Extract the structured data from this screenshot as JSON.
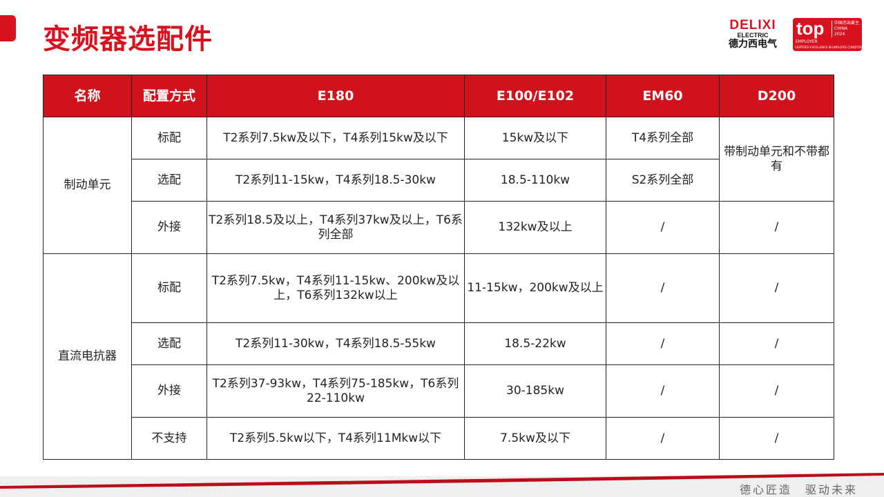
{
  "header": {
    "title": "变频器选配件"
  },
  "logo": {
    "brand": "DELIXI",
    "sub": "ELECTRIC",
    "cn": "德力西电气"
  },
  "badge": {
    "top": "top",
    "employer": "EMPLOYER",
    "region_cn": "中国杰出雇主",
    "region": "CHINA",
    "year": "2024",
    "footnote": "CERTIFIED EXCELLENCE IN EMPLOYEE CONDITIONS"
  },
  "colors": {
    "accent": "#d0121d"
  },
  "table": {
    "headers": [
      "名称",
      "配置方式",
      "E180",
      "E100/E102",
      "EM60",
      "D200"
    ],
    "rows": [
      {
        "cells": [
          {
            "t": "制动单元",
            "rs": 3
          },
          {
            "t": "标配"
          },
          {
            "t": "T2系列7.5kw及以下，T4系列15kw及以下"
          },
          {
            "t": "15kw及以下"
          },
          {
            "t": "T4系列全部"
          },
          {
            "t": "带制动单元和不带都有",
            "rs": 2
          }
        ]
      },
      {
        "cells": [
          {
            "t": "选配"
          },
          {
            "t": "T2系列11-15kw，T4系列18.5-30kw"
          },
          {
            "t": "18.5-110kw"
          },
          {
            "t": "S2系列全部"
          }
        ]
      },
      {
        "cells": [
          {
            "t": "外接"
          },
          {
            "t": "T2系列18.5及以上，T4系列37kw及以上，T6系列全部"
          },
          {
            "t": "132kw及以上"
          },
          {
            "t": "/"
          },
          {
            "t": "/"
          }
        ]
      },
      {
        "cells": [
          {
            "t": "直流电抗器",
            "rs": 4
          },
          {
            "t": "标配"
          },
          {
            "t": "T2系列7.5kw，T4系列11-15kw、200kw及以上，T6系列132kw以上"
          },
          {
            "t": "11-15kw，200kw及以上"
          },
          {
            "t": "/"
          },
          {
            "t": "/"
          }
        ]
      },
      {
        "cells": [
          {
            "t": "选配"
          },
          {
            "t": "T2系列11-30kw，T4系列18.5-55kw"
          },
          {
            "t": "18.5-22kw"
          },
          {
            "t": "/"
          },
          {
            "t": "/"
          }
        ]
      },
      {
        "cells": [
          {
            "t": "外接"
          },
          {
            "t": "T2系列37-93kw，T4系列75-185kw，T6系列22-110kw"
          },
          {
            "t": "30-185kw"
          },
          {
            "t": "/"
          },
          {
            "t": "/"
          }
        ]
      },
      {
        "cells": [
          {
            "t": "不支持"
          },
          {
            "t": "T2系列5.5kw以下，T4系列11Mkw以下"
          },
          {
            "t": "7.5kw及以下"
          },
          {
            "t": "/"
          },
          {
            "t": "/"
          }
        ]
      }
    ]
  },
  "footer": {
    "slogan": "德心匠造　驱动未来"
  }
}
